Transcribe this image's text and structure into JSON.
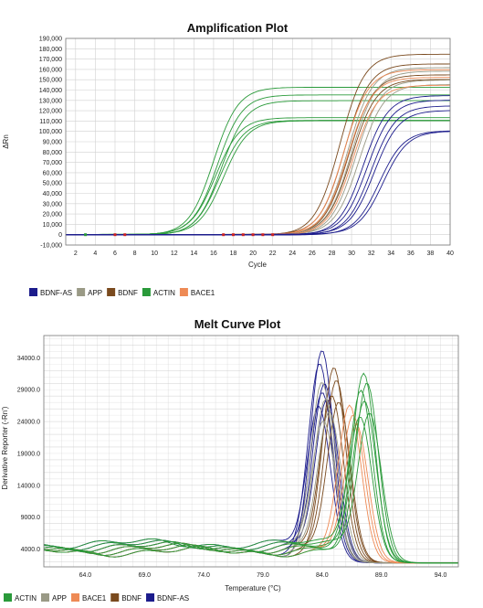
{
  "colors": {
    "BDNF-AS": "#1c1c8c",
    "APP": "#9a9a86",
    "BDNF": "#7a4a1e",
    "ACTIN": "#2a9a3a",
    "BACE1": "#ee8a55"
  },
  "chart_data": [
    {
      "type": "line",
      "title": "Amplification Plot",
      "xlabel": "Cycle",
      "ylabel": "ΔRn",
      "xlim": [
        1,
        40
      ],
      "ylim": [
        -10000,
        190000
      ],
      "x_ticks": [
        2,
        4,
        6,
        8,
        10,
        12,
        14,
        16,
        18,
        20,
        22,
        24,
        26,
        28,
        30,
        32,
        34,
        36,
        38,
        40
      ],
      "y_ticks": [
        -10000,
        0,
        10000,
        20000,
        30000,
        40000,
        50000,
        60000,
        70000,
        80000,
        90000,
        100000,
        110000,
        120000,
        130000,
        140000,
        150000,
        160000,
        170000,
        180000,
        190000
      ],
      "y_tick_labels": [
        "-10,000",
        "0",
        "10,000",
        "20,000",
        "30,000",
        "40,000",
        "50,000",
        "60,000",
        "70,000",
        "80,000",
        "90,000",
        "100,000",
        "110,000",
        "120,000",
        "130,000",
        "140,000",
        "150,000",
        "160,000",
        "170,000",
        "180,000",
        "190,000"
      ],
      "grid": true,
      "legend": [
        "BDNF-AS",
        "APP",
        "BDNF",
        "ACTIN",
        "BACE1"
      ],
      "legend_position": "bottom-left",
      "series": [
        {
          "name": "ACTIN",
          "color": "#2a9a3a",
          "curves": [
            {
              "plateau": 143000,
              "midpoint": 16.0
            },
            {
              "plateau": 135000,
              "midpoint": 16.4
            },
            {
              "plateau": 130000,
              "midpoint": 16.8
            },
            {
              "plateau": 113000,
              "midpoint": 16.2
            },
            {
              "plateau": 111000,
              "midpoint": 16.6
            },
            {
              "plateau": 110000,
              "midpoint": 17.0
            }
          ]
        },
        {
          "name": "BDNF",
          "color": "#7a4a1e",
          "curves": [
            {
              "plateau": 175000,
              "midpoint": 28.8
            },
            {
              "plateau": 165000,
              "midpoint": 29.3
            },
            {
              "plateau": 155000,
              "midpoint": 29.7
            },
            {
              "plateau": 150000,
              "midpoint": 30.0
            }
          ]
        },
        {
          "name": "APP",
          "color": "#9a9a86",
          "curves": [
            {
              "plateau": 162000,
              "midpoint": 29.6
            },
            {
              "plateau": 158000,
              "midpoint": 30.0
            },
            {
              "plateau": 150000,
              "midpoint": 30.4
            },
            {
              "plateau": 145000,
              "midpoint": 30.8
            }
          ]
        },
        {
          "name": "BACE1",
          "color": "#ee8a55",
          "curves": [
            {
              "plateau": 160000,
              "midpoint": 29.2
            },
            {
              "plateau": 152000,
              "midpoint": 29.6
            },
            {
              "plateau": 145000,
              "midpoint": 30.1
            }
          ]
        },
        {
          "name": "BDNF-AS",
          "color": "#1c1c8c",
          "curves": [
            {
              "plateau": 135000,
              "midpoint": 31.2
            },
            {
              "plateau": 130000,
              "midpoint": 31.6
            },
            {
              "plateau": 125000,
              "midpoint": 32.0
            },
            {
              "plateau": 120000,
              "midpoint": 32.3
            },
            {
              "plateau": 101000,
              "midpoint": 32.8
            },
            {
              "plateau": 100000,
              "midpoint": 33.2
            }
          ]
        }
      ]
    },
    {
      "type": "line",
      "title": "Melt Curve Plot",
      "xlabel": "Temperature (°C)",
      "ylabel": "Derivative Reporter (-Rn')",
      "xlim": [
        60.5,
        95.5
      ],
      "ylim": [
        1200,
        37500
      ],
      "x_ticks": [
        64.0,
        69.0,
        74.0,
        79.0,
        84.0,
        89.0,
        94.0
      ],
      "x_tick_labels": [
        "64.0",
        "69.0",
        "74.0",
        "79.0",
        "84.0",
        "89.0",
        "94.0"
      ],
      "y_ticks": [
        4000,
        9000,
        14000,
        19000,
        24000,
        29000,
        34000
      ],
      "y_tick_labels": [
        "4000.0",
        "9000.0",
        "14000.0",
        "19000.0",
        "24000.0",
        "29000.0",
        "34000.0"
      ],
      "grid": true,
      "legend": [
        "ACTIN",
        "APP",
        "BACE1",
        "BDNF",
        "BDNF-AS"
      ],
      "legend_position": "bottom-left",
      "series": [
        {
          "name": "BDNF-AS",
          "color": "#1c1c8c",
          "curves": [
            {
              "peak_temp": 84.0,
              "peak": 35000
            },
            {
              "peak_temp": 83.8,
              "peak": 33000
            },
            {
              "peak_temp": 84.2,
              "peak": 30000
            },
            {
              "peak_temp": 84.0,
              "peak": 28500
            },
            {
              "peak_temp": 84.4,
              "peak": 27000
            },
            {
              "peak_temp": 83.7,
              "peak": 26000
            }
          ]
        },
        {
          "name": "BDNF",
          "color": "#7a4a1e",
          "curves": [
            {
              "peak_temp": 85.0,
              "peak": 32500
            },
            {
              "peak_temp": 85.2,
              "peak": 30500
            },
            {
              "peak_temp": 84.8,
              "peak": 28000
            },
            {
              "peak_temp": 85.4,
              "peak": 26500
            }
          ]
        },
        {
          "name": "APP",
          "color": "#9a9a86",
          "curves": [
            {
              "peak_temp": 84.0,
              "peak": 30000
            },
            {
              "peak_temp": 84.3,
              "peak": 27500
            },
            {
              "peak_temp": 84.6,
              "peak": 25500
            },
            {
              "peak_temp": 84.1,
              "peak": 24000
            }
          ]
        },
        {
          "name": "BACE1",
          "color": "#ee8a55",
          "curves": [
            {
              "peak_temp": 86.3,
              "peak": 26500
            },
            {
              "peak_temp": 86.6,
              "peak": 24500
            },
            {
              "peak_temp": 86.9,
              "peak": 23000
            }
          ]
        },
        {
          "name": "ACTIN",
          "color": "#2a9a3a",
          "curves": [
            {
              "peak_temp": 87.5,
              "peak": 31000
            },
            {
              "peak_temp": 87.8,
              "peak": 29500
            },
            {
              "peak_temp": 87.3,
              "peak": 28500
            },
            {
              "peak_temp": 87.6,
              "peak": 27500
            },
            {
              "peak_temp": 88.0,
              "peak": 26000
            },
            {
              "peak_temp": 87.2,
              "peak": 25500
            }
          ]
        }
      ]
    }
  ]
}
